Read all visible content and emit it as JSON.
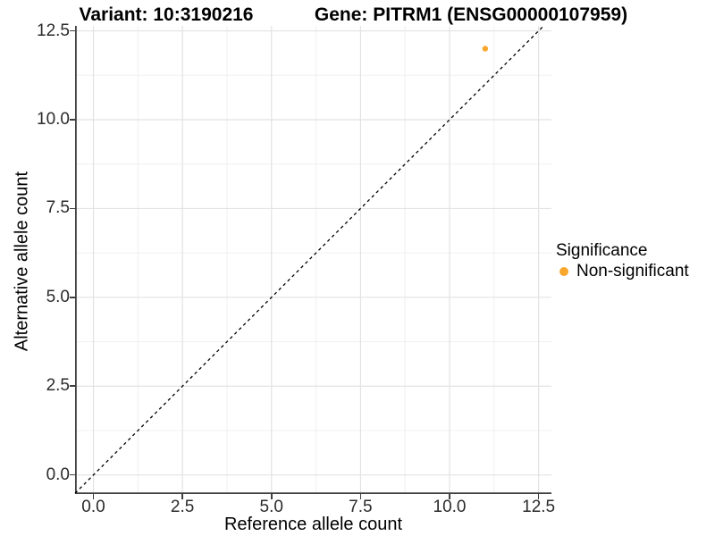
{
  "titles": {
    "left": "Variant: 10:3190216",
    "right": "Gene: PITRM1 (ENSG00000107959)"
  },
  "chart_data": {
    "type": "scatter",
    "xlabel": "Reference allele count",
    "ylabel": "Alternative allele count",
    "xlim": [
      -0.515,
      12.86
    ],
    "ylim": [
      -0.536,
      12.64
    ],
    "x_ticks": {
      "values": [
        0,
        2.5,
        5,
        7.5,
        10,
        12.5
      ],
      "labels": [
        "0.0",
        "2.5",
        "5.0",
        "7.5",
        "10.0",
        "12.5"
      ]
    },
    "y_ticks": {
      "values": [
        0,
        2.5,
        5,
        7.5,
        10,
        12.5
      ],
      "labels": [
        "0.0",
        "2.5",
        "5.0",
        "7.5",
        "10.0",
        "12.5"
      ]
    },
    "x_minor_ticks": [
      1.25,
      3.75,
      6.25,
      8.75,
      11.25
    ],
    "y_minor_ticks": [
      1.25,
      3.75,
      6.25,
      8.75,
      11.25
    ],
    "grid": true,
    "legend_position": "right",
    "abline": {
      "slope": 1,
      "intercept": 0,
      "linetype": "dashed",
      "color": "#000000"
    },
    "points": [
      {
        "x": 11,
        "y": 12,
        "series": "Non-significant",
        "color": "#F9A62D",
        "radius": 3.2
      }
    ],
    "legend": {
      "title": "Significance",
      "entries": [
        {
          "label": "Non-significant",
          "color": "#F9A62D"
        }
      ]
    }
  },
  "colors": {
    "non_significant_orange": "#F9A62D",
    "grid_major": "#E2E2E2",
    "grid_minor": "#F0F0F0",
    "axis_line": "#3f3f3f",
    "tick_label": "#2b2b2b"
  }
}
